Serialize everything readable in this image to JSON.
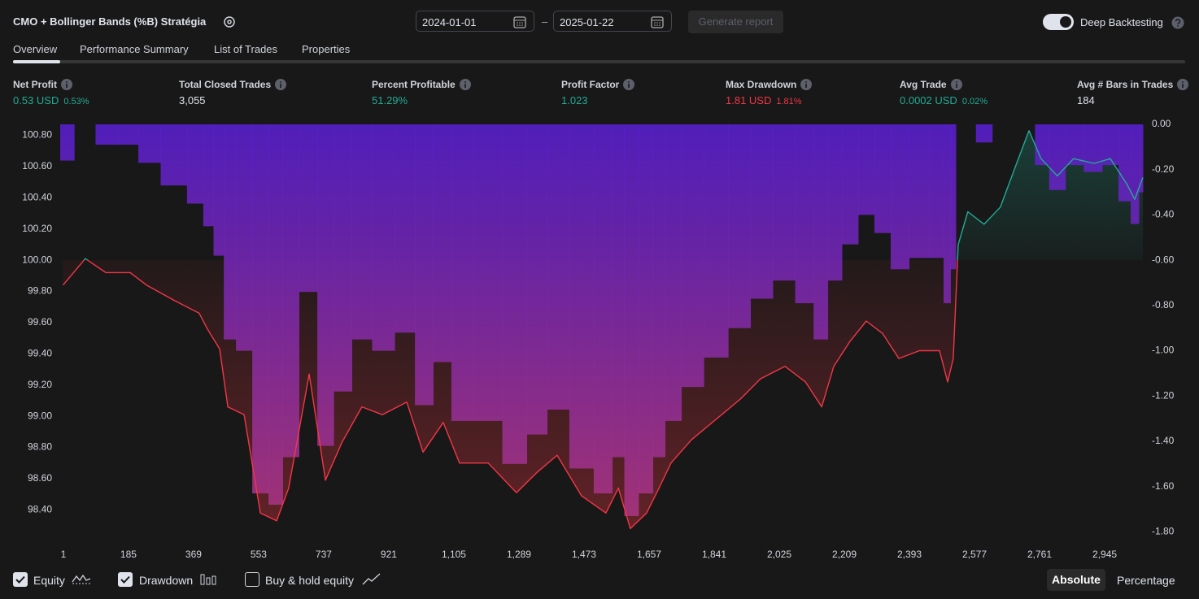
{
  "header": {
    "title": "CMO + Bollinger Bands (%B) Stratégia",
    "date_from": "2024-01-01",
    "date_separator": "–",
    "date_to": "2025-01-22",
    "generate_button": "Generate report",
    "deep_backtesting_label": "Deep Backtesting"
  },
  "tabs": [
    "Overview",
    "Performance Summary",
    "List of Trades",
    "Properties"
  ],
  "metrics": [
    {
      "label": "Net Profit",
      "value": "0.53 USD",
      "percent": "0.53%",
      "tone": "positive"
    },
    {
      "label": "Total Closed Trades",
      "value": "3,055",
      "tone": "neutral"
    },
    {
      "label": "Percent Profitable",
      "value": "51.29%",
      "tone": "positive"
    },
    {
      "label": "Profit Factor",
      "value": "1.023",
      "tone": "positive"
    },
    {
      "label": "Max Drawdown",
      "value": "1.81 USD",
      "percent": "1.81%",
      "tone": "negative"
    },
    {
      "label": "Avg Trade",
      "value": "0.0002 USD",
      "percent": "0.02%",
      "tone": "positive"
    },
    {
      "label": "Avg # Bars in Trades",
      "value": "184",
      "tone": "neutral"
    }
  ],
  "chart_data": {
    "type": "line",
    "x": [
      0,
      63,
      121,
      190,
      236,
      316,
      385,
      408,
      443,
      466,
      512,
      558,
      604,
      638,
      696,
      742,
      788,
      845,
      903,
      972,
      1018,
      1075,
      1121,
      1202,
      1282,
      1340,
      1397,
      1466,
      1535,
      1570,
      1604,
      1650,
      1685,
      1719,
      1777,
      1846,
      1915,
      1972,
      2041,
      2099,
      2145,
      2179,
      2225,
      2271,
      2317,
      2363,
      2421,
      2478,
      2501,
      2517,
      2531,
      2558,
      2604,
      2650,
      2696,
      2731,
      2765,
      2811,
      2857,
      2915,
      2961,
      3007,
      3030,
      3053
    ],
    "series": [
      {
        "name": "Equity",
        "color": "#f23645",
        "positive_color": "#22ab94",
        "values": [
          99.84,
          100.01,
          99.92,
          99.92,
          99.84,
          99.74,
          99.66,
          99.56,
          99.43,
          99.06,
          99.01,
          98.38,
          98.33,
          98.54,
          99.27,
          98.59,
          98.83,
          99.06,
          99.01,
          99.09,
          98.77,
          98.96,
          98.7,
          98.7,
          98.51,
          98.64,
          98.75,
          98.49,
          98.38,
          98.54,
          98.28,
          98.38,
          98.54,
          98.7,
          98.85,
          98.98,
          99.11,
          99.24,
          99.32,
          99.22,
          99.06,
          99.32,
          99.48,
          99.61,
          99.53,
          99.37,
          99.42,
          99.42,
          99.22,
          99.37,
          100.1,
          100.31,
          100.23,
          100.34,
          100.62,
          100.83,
          100.65,
          100.54,
          100.65,
          100.62,
          100.65,
          100.49,
          100.39,
          100.53
        ]
      },
      {
        "name": "Drawdown",
        "color": "#5b1fd6",
        "color_deep": "#b0367f",
        "axis": "y2",
        "values": [
          -0.16,
          0,
          -0.09,
          -0.09,
          -0.17,
          -0.27,
          -0.35,
          -0.45,
          -0.58,
          -0.95,
          -1.0,
          -1.63,
          -1.68,
          -1.47,
          -0.74,
          -1.42,
          -1.18,
          -0.95,
          -1.0,
          -0.92,
          -1.24,
          -1.05,
          -1.31,
          -1.31,
          -1.5,
          -1.37,
          -1.26,
          -1.52,
          -1.63,
          -1.47,
          -1.73,
          -1.63,
          -1.47,
          -1.31,
          -1.16,
          -1.03,
          -0.9,
          -0.77,
          -0.69,
          -0.79,
          -0.95,
          -0.69,
          -0.53,
          -0.4,
          -0.48,
          -0.64,
          -0.59,
          -0.59,
          -0.79,
          -0.64,
          0,
          0,
          -0.08,
          0,
          0,
          0,
          -0.18,
          -0.29,
          -0.18,
          -0.21,
          -0.18,
          -0.34,
          -0.44,
          -0.3
        ]
      }
    ],
    "fill_baseline": 100,
    "xlim": [
      -8,
      3053
    ],
    "xticks": [
      1,
      185,
      369,
      553,
      737,
      921,
      {
        "value": 1105,
        "label": "1,105"
      },
      {
        "value": 1289,
        "label": "1,289"
      },
      {
        "value": 1473,
        "label": "1,473"
      },
      {
        "value": 1657,
        "label": "1,657"
      },
      {
        "value": 1841,
        "label": "1,841"
      },
      {
        "value": 2025,
        "label": "2,025"
      },
      {
        "value": 2209,
        "label": "2,209"
      },
      {
        "value": 2393,
        "label": "2,393"
      },
      {
        "value": 2577,
        "label": "2,577"
      },
      {
        "value": 2761,
        "label": "2,761"
      },
      {
        "value": 2945,
        "label": "2,945"
      }
    ],
    "ylim": [
      98.23,
      100.87
    ],
    "yticks": [
      {
        "value": 98.4,
        "label": "98.40"
      },
      {
        "value": 98.6,
        "label": "98.60"
      },
      {
        "value": 98.8,
        "label": "98.80"
      },
      {
        "value": 99,
        "label": "99.00"
      },
      {
        "value": 99.2,
        "label": "99.20"
      },
      {
        "value": 99.4,
        "label": "99.40"
      },
      {
        "value": 99.6,
        "label": "99.60"
      },
      {
        "value": 99.8,
        "label": "99.80"
      },
      {
        "value": 100,
        "label": "100.00"
      },
      {
        "value": 100.2,
        "label": "100.20"
      },
      {
        "value": 100.4,
        "label": "100.40"
      },
      {
        "value": 100.6,
        "label": "100.60"
      },
      {
        "value": 100.8,
        "label": "100.80"
      }
    ],
    "y2lim": [
      -1.82,
      0
    ],
    "y2ticks": [
      {
        "value": 0,
        "label": "0.00"
      },
      {
        "value": -0.2,
        "label": "-0.20"
      },
      {
        "value": -0.4,
        "label": "-0.40"
      },
      {
        "value": -0.6,
        "label": "-0.60"
      },
      {
        "value": -0.8,
        "label": "-0.80"
      },
      {
        "value": -1,
        "label": "-1.00"
      },
      {
        "value": -1.2,
        "label": "-1.20"
      },
      {
        "value": -1.4,
        "label": "-1.40"
      },
      {
        "value": -1.6,
        "label": "-1.60"
      },
      {
        "value": -1.8,
        "label": "-1.80"
      }
    ],
    "grid": false
  },
  "footer": {
    "buy_hold_label": "Buy & hold equity",
    "absolute": "Absolute",
    "percentage": "Percentage"
  }
}
